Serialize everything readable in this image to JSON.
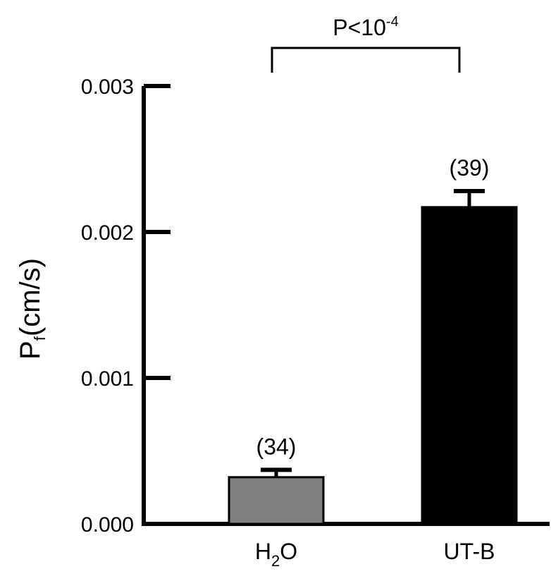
{
  "chart_data": {
    "type": "bar",
    "ylabel": {
      "main": "P",
      "sub": "f",
      "rest": "(cm/s)"
    },
    "ylim": [
      0,
      0.003
    ],
    "yticks": [
      {
        "value": 0.0,
        "label": "0.000"
      },
      {
        "value": 0.001,
        "label": "0.001"
      },
      {
        "value": 0.002,
        "label": "0.002"
      },
      {
        "value": 0.003,
        "label": "0.003"
      }
    ],
    "categories": [
      {
        "id": "h2o",
        "label_main": "H",
        "label_sub": "2",
        "label_rest": "O"
      },
      {
        "id": "utb",
        "label_main": "UT-B",
        "label_sub": "",
        "label_rest": ""
      }
    ],
    "values": [
      0.00032,
      0.00217
    ],
    "errors": [
      5e-05,
      0.00011
    ],
    "n_labels": [
      "(34)",
      "(39)"
    ],
    "colors": [
      "#7f7f7f",
      "#000000"
    ],
    "significance": {
      "text": "P<10",
      "exponent": "-4",
      "between": [
        "h2o",
        "utb"
      ]
    }
  }
}
